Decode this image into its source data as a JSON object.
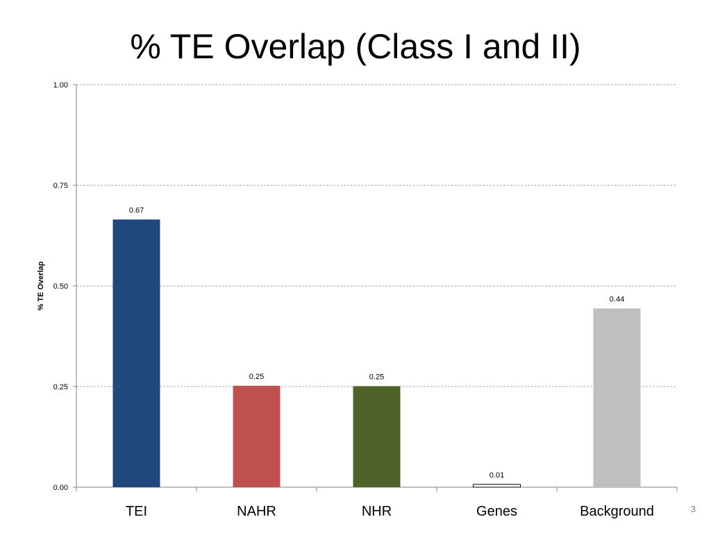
{
  "slide": {
    "title": "% TE Overlap (Class I and II)",
    "page_number": "3"
  },
  "chart_data": {
    "type": "bar",
    "title": "",
    "xlabel": "",
    "ylabel": "% TE Overlap",
    "ylim": [
      0,
      1
    ],
    "yticks": [
      0,
      0.25,
      0.5,
      0.75,
      1
    ],
    "ytick_labels": [
      "0.00",
      "0.25",
      "0.50",
      "0.75",
      "1.00"
    ],
    "grid": true,
    "categories": [
      "TEI",
      "NAHR",
      "NHR",
      "Genes",
      "Background"
    ],
    "values": [
      0.665,
      0.252,
      0.251,
      0.007,
      0.444
    ],
    "value_labels": [
      "0.67",
      "0.25",
      "0.25",
      "0.01",
      "0.44"
    ],
    "colors": [
      "#1f497d",
      "#c0504d",
      "#4f6228",
      "#ffffff",
      "#bfbfbf"
    ]
  }
}
